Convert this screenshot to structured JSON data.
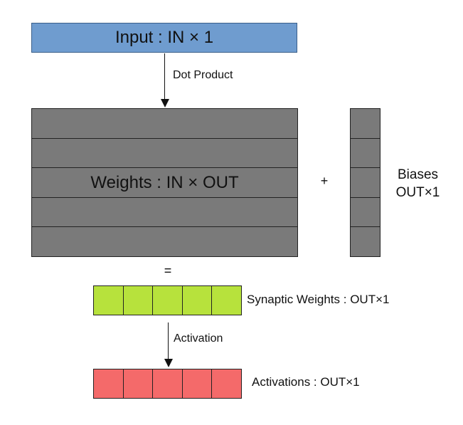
{
  "input": {
    "label": "Input : IN × 1",
    "color": "#6f9ccf"
  },
  "arrow_dot": {
    "label": "Dot Product"
  },
  "weights": {
    "label": "Weights : IN × OUT",
    "rows": 5,
    "color": "#7a7a7a"
  },
  "operator_plus": "+",
  "biases": {
    "label_line1": "Biases",
    "label_line2": "OUT×1",
    "cells": 5,
    "color": "#7a7a7a"
  },
  "operator_equals": "=",
  "synaptic": {
    "label": "Synaptic Weights : OUT×1",
    "cells": 5,
    "color": "#b7e23c"
  },
  "arrow_activation": {
    "label": "Activation"
  },
  "activations": {
    "label": "Activations : OUT×1",
    "cells": 5,
    "color": "#f46a6a"
  }
}
